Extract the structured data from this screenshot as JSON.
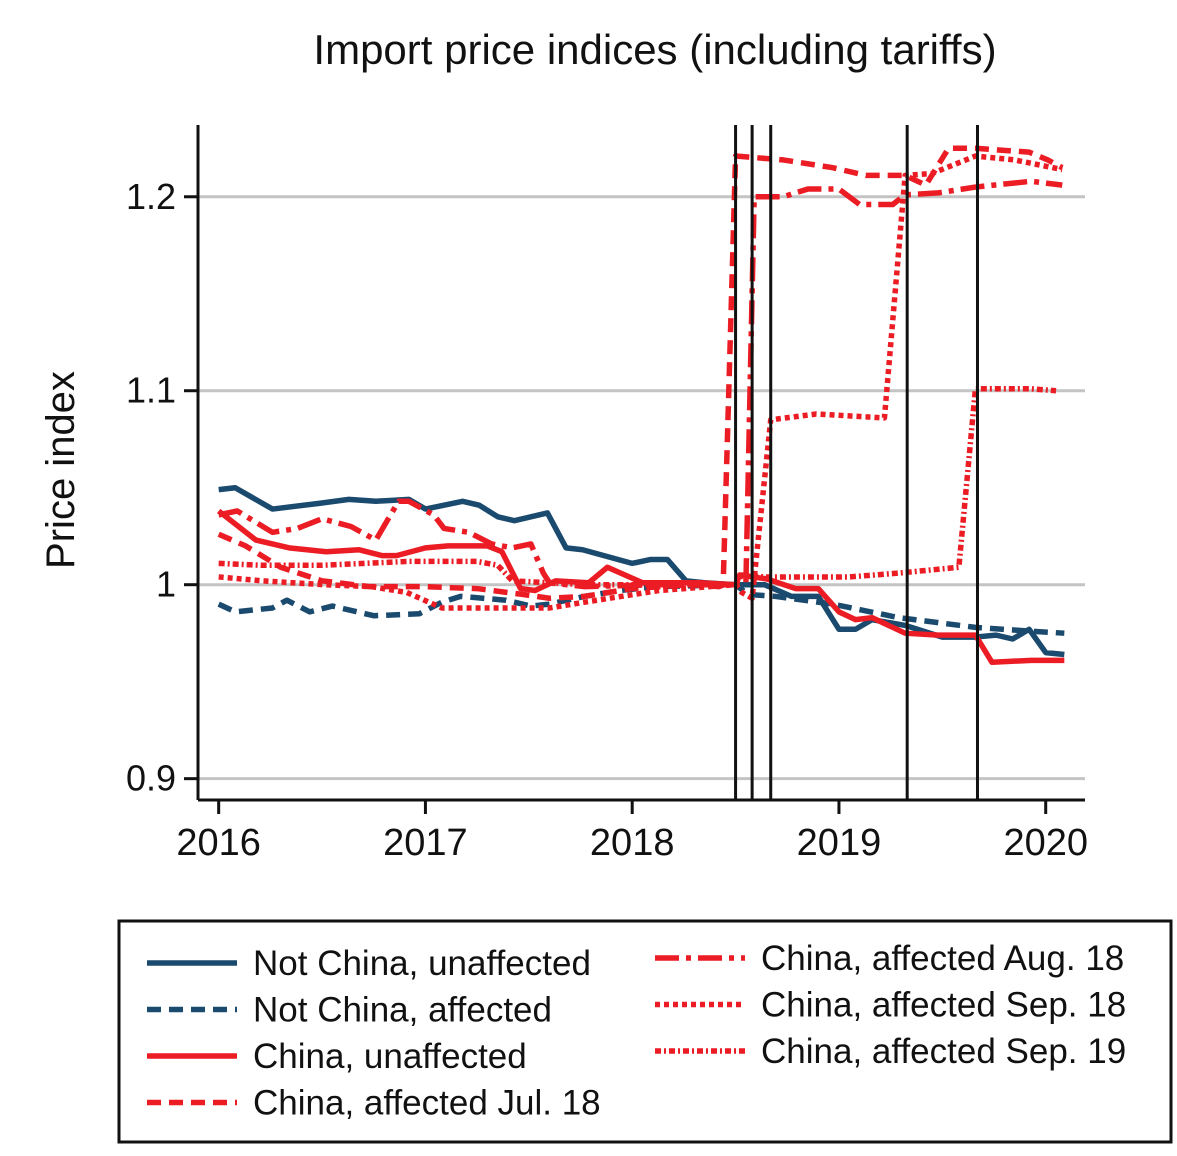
{
  "chart_data": {
    "type": "line",
    "title": "Import price indices (including tariffs)",
    "xlabel": "",
    "ylabel": "Price index",
    "xlim": [
      2015.9,
      2020.19
    ],
    "ylim": [
      0.889,
      1.237
    ],
    "x_ticks": [
      2016,
      2017,
      2018,
      2019,
      2020
    ],
    "x_tick_labels": [
      "2016",
      "2017",
      "2018",
      "2019",
      "2020"
    ],
    "y_ticks": [
      0.9,
      1.0,
      1.1,
      1.2
    ],
    "y_tick_labels": [
      "0.9",
      "1",
      "1.1",
      "1.2"
    ],
    "grid": "horizontal",
    "vertical_lines": [
      2018.5,
      2018.58,
      2018.67,
      2019.33,
      2019.67
    ],
    "legend_position": "bottom",
    "colors": {
      "navy": "#1b4a6f",
      "red": "#ec1c24",
      "grid": "#c4c4c4"
    },
    "series": [
      {
        "name": "Not China, unaffected",
        "color": "#1b4a6f",
        "style": "solid",
        "points": [
          [
            2016.0,
            1.049
          ],
          [
            2016.08,
            1.05
          ],
          [
            2016.26,
            1.039
          ],
          [
            2016.49,
            1.042
          ],
          [
            2016.63,
            1.044
          ],
          [
            2016.76,
            1.043
          ],
          [
            2016.92,
            1.044
          ],
          [
            2017.0,
            1.039
          ],
          [
            2017.18,
            1.043
          ],
          [
            2017.26,
            1.041
          ],
          [
            2017.35,
            1.035
          ],
          [
            2017.43,
            1.033
          ],
          [
            2017.59,
            1.037
          ],
          [
            2017.68,
            1.019
          ],
          [
            2017.76,
            1.018
          ],
          [
            2018.0,
            1.011
          ],
          [
            2018.09,
            1.013
          ],
          [
            2018.17,
            1.013
          ],
          [
            2018.26,
            1.002
          ],
          [
            2018.35,
            1.001
          ],
          [
            2018.5,
            1.0
          ],
          [
            2018.64,
            1.0
          ],
          [
            2018.77,
            0.994
          ],
          [
            2018.9,
            0.994
          ],
          [
            2019.0,
            0.977
          ],
          [
            2019.08,
            0.977
          ],
          [
            2019.16,
            0.982
          ],
          [
            2019.32,
            0.979
          ],
          [
            2019.5,
            0.973
          ],
          [
            2019.66,
            0.973
          ],
          [
            2019.76,
            0.974
          ],
          [
            2019.84,
            0.972
          ],
          [
            2019.92,
            0.977
          ],
          [
            2020.0,
            0.965
          ],
          [
            2020.09,
            0.964
          ]
        ]
      },
      {
        "name": "Not China, affected",
        "color": "#1b4a6f",
        "style": "dash",
        "points": [
          [
            2016.0,
            0.99
          ],
          [
            2016.08,
            0.986
          ],
          [
            2016.26,
            0.988
          ],
          [
            2016.33,
            0.992
          ],
          [
            2016.44,
            0.986
          ],
          [
            2016.55,
            0.989
          ],
          [
            2016.75,
            0.984
          ],
          [
            2016.97,
            0.985
          ],
          [
            2017.08,
            0.991
          ],
          [
            2017.17,
            0.994
          ],
          [
            2017.39,
            0.992
          ],
          [
            2017.51,
            0.989
          ],
          [
            2017.6,
            0.99
          ],
          [
            2017.77,
            0.994
          ],
          [
            2017.94,
            0.997
          ],
          [
            2018.12,
            0.999
          ],
          [
            2018.5,
            1.0
          ],
          [
            2018.56,
            0.995
          ],
          [
            2018.69,
            0.994
          ],
          [
            2018.97,
            0.99
          ],
          [
            2019.29,
            0.983
          ],
          [
            2019.66,
            0.978
          ],
          [
            2019.93,
            0.976
          ],
          [
            2020.09,
            0.975
          ]
        ]
      },
      {
        "name": "China, unaffected",
        "color": "#ec1c24",
        "style": "solid",
        "points": [
          [
            2016.0,
            1.038
          ],
          [
            2016.18,
            1.023
          ],
          [
            2016.34,
            1.019
          ],
          [
            2016.52,
            1.017
          ],
          [
            2016.68,
            1.018
          ],
          [
            2016.79,
            1.015
          ],
          [
            2016.86,
            1.015
          ],
          [
            2017.0,
            1.019
          ],
          [
            2017.11,
            1.02
          ],
          [
            2017.3,
            1.02
          ],
          [
            2017.37,
            1.017
          ],
          [
            2017.46,
            0.998
          ],
          [
            2017.53,
            0.997
          ],
          [
            2017.63,
            1.002
          ],
          [
            2017.79,
            1.001
          ],
          [
            2017.88,
            1.009
          ],
          [
            2018.05,
            1.001
          ],
          [
            2018.33,
            1.001
          ],
          [
            2018.5,
            1.0
          ],
          [
            2018.52,
            1.005
          ],
          [
            2018.65,
            1.003
          ],
          [
            2018.79,
            0.998
          ],
          [
            2018.9,
            0.998
          ],
          [
            2019.0,
            0.986
          ],
          [
            2019.08,
            0.982
          ],
          [
            2019.16,
            0.983
          ],
          [
            2019.32,
            0.975
          ],
          [
            2019.48,
            0.974
          ],
          [
            2019.66,
            0.974
          ],
          [
            2019.74,
            0.96
          ],
          [
            2019.93,
            0.961
          ],
          [
            2020.09,
            0.961
          ]
        ]
      },
      {
        "name": "China, affected Jul. 18",
        "color": "#ec1c24",
        "style": "dash",
        "points": [
          [
            2016.0,
            1.026
          ],
          [
            2016.13,
            1.02
          ],
          [
            2016.3,
            1.009
          ],
          [
            2016.5,
            1.002
          ],
          [
            2016.73,
            0.999
          ],
          [
            2016.99,
            0.999
          ],
          [
            2017.25,
            0.998
          ],
          [
            2017.47,
            0.995
          ],
          [
            2017.6,
            0.993
          ],
          [
            2017.77,
            0.994
          ],
          [
            2018.0,
            0.998
          ],
          [
            2018.28,
            1.0
          ],
          [
            2018.42,
            0.999
          ],
          [
            2018.44,
            1.0
          ],
          [
            2018.5,
            1.221
          ],
          [
            2018.73,
            1.219
          ],
          [
            2018.97,
            1.215
          ],
          [
            2019.13,
            1.211
          ],
          [
            2019.32,
            1.211
          ],
          [
            2019.42,
            1.206
          ],
          [
            2019.53,
            1.225
          ],
          [
            2019.66,
            1.225
          ],
          [
            2019.92,
            1.223
          ],
          [
            2020.01,
            1.219
          ],
          [
            2020.08,
            1.215
          ]
        ]
      },
      {
        "name": "China, affected Aug. 18",
        "color": "#ec1c24",
        "style": "dashdot",
        "points": [
          [
            2016.0,
            1.036
          ],
          [
            2016.09,
            1.038
          ],
          [
            2016.26,
            1.027
          ],
          [
            2016.38,
            1.029
          ],
          [
            2016.5,
            1.034
          ],
          [
            2016.64,
            1.03
          ],
          [
            2016.76,
            1.023
          ],
          [
            2016.87,
            1.043
          ],
          [
            2016.92,
            1.043
          ],
          [
            2017.04,
            1.036
          ],
          [
            2017.09,
            1.029
          ],
          [
            2017.21,
            1.027
          ],
          [
            2017.32,
            1.021
          ],
          [
            2017.42,
            1.019
          ],
          [
            2017.51,
            1.021
          ],
          [
            2017.57,
            1.006
          ],
          [
            2017.6,
            1.001
          ],
          [
            2017.77,
            0.999
          ],
          [
            2018.11,
            1.0
          ],
          [
            2018.5,
            1.0
          ],
          [
            2018.55,
            1.001
          ],
          [
            2018.59,
            1.2
          ],
          [
            2018.73,
            1.2
          ],
          [
            2018.85,
            1.204
          ],
          [
            2019.0,
            1.204
          ],
          [
            2019.1,
            1.196
          ],
          [
            2019.26,
            1.196
          ],
          [
            2019.32,
            1.201
          ],
          [
            2019.48,
            1.202
          ],
          [
            2019.66,
            1.205
          ],
          [
            2019.93,
            1.208
          ],
          [
            2020.08,
            1.206
          ]
        ]
      },
      {
        "name": "China, affected Sep. 18",
        "color": "#ec1c24",
        "style": "dot",
        "points": [
          [
            2016.0,
            1.004
          ],
          [
            2016.21,
            1.002
          ],
          [
            2016.51,
            1.0
          ],
          [
            2016.74,
            0.999
          ],
          [
            2016.91,
            0.996
          ],
          [
            2017.08,
            0.988
          ],
          [
            2017.35,
            0.988
          ],
          [
            2017.6,
            0.988
          ],
          [
            2017.77,
            0.991
          ],
          [
            2018.13,
            0.997
          ],
          [
            2018.5,
            1.0
          ],
          [
            2018.53,
            0.996
          ],
          [
            2018.58,
            0.993
          ],
          [
            2018.67,
            1.085
          ],
          [
            2018.89,
            1.088
          ],
          [
            2019.22,
            1.086
          ],
          [
            2019.32,
            1.211
          ],
          [
            2019.45,
            1.212
          ],
          [
            2019.66,
            1.221
          ],
          [
            2019.85,
            1.219
          ],
          [
            2020.08,
            1.214
          ]
        ]
      },
      {
        "name": "China, affected Sep. 19",
        "color": "#ec1c24",
        "style": "dashdotdot",
        "points": [
          [
            2016.0,
            1.011
          ],
          [
            2016.21,
            1.01
          ],
          [
            2016.5,
            1.01
          ],
          [
            2016.91,
            1.012
          ],
          [
            2017.25,
            1.012
          ],
          [
            2017.35,
            1.01
          ],
          [
            2017.42,
            1.002
          ],
          [
            2017.77,
            1.0
          ],
          [
            2018.5,
            1.0
          ],
          [
            2018.53,
            1.005
          ],
          [
            2018.64,
            1.004
          ],
          [
            2019.05,
            1.004
          ],
          [
            2019.29,
            1.006
          ],
          [
            2019.58,
            1.009
          ],
          [
            2019.66,
            1.101
          ],
          [
            2019.93,
            1.101
          ],
          [
            2020.05,
            1.1
          ]
        ]
      }
    ]
  }
}
